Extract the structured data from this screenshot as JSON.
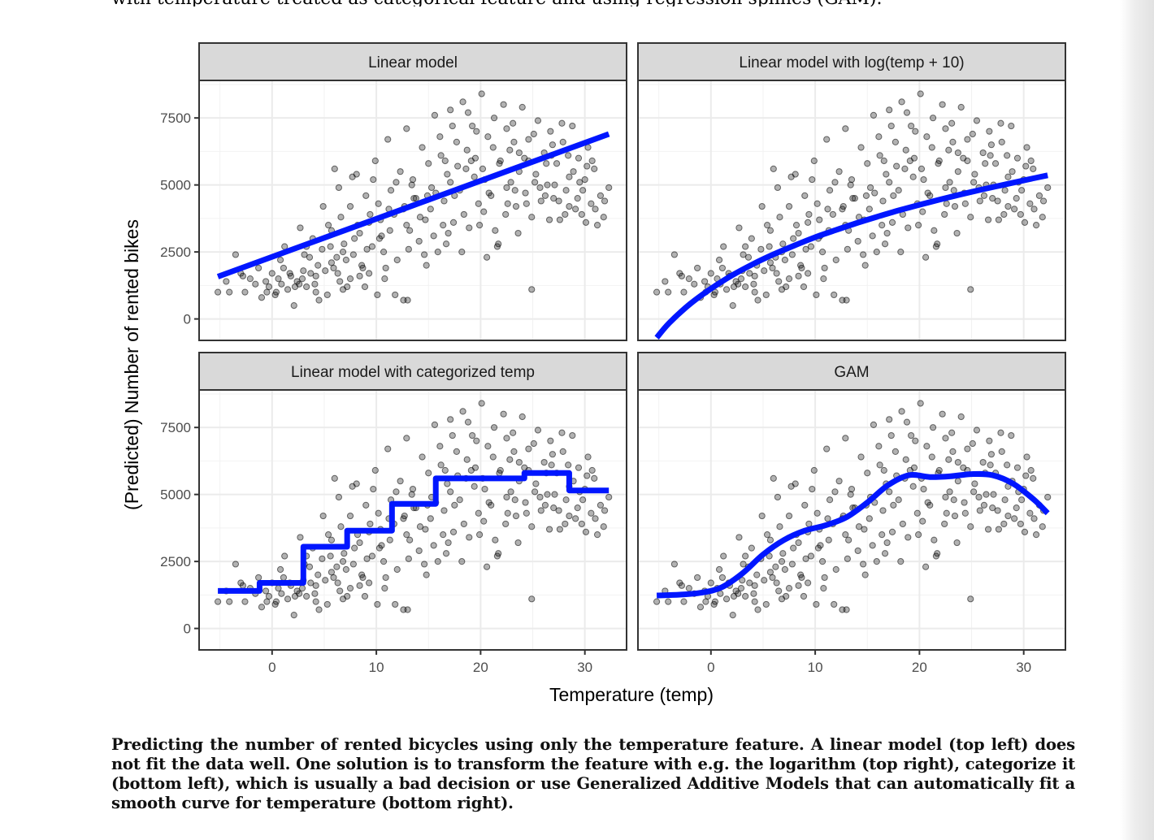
{
  "document": {
    "top_text": "with temperature treated as categorical feature and using regression splines (GAM).",
    "caption": "Predicting the number of rented bicycles using only the temperature feature. A linear model (top left) does not fit the data well. One solution is to transform the feature with e.g. the logarithm (top right), categorize it (bottom left), which is usually a bad decision or use Generalized Additive Models that can automatically fit a smooth curve for temperature (bottom right)."
  },
  "chart_data": {
    "type": "scatter",
    "xlabel": "Temperature (temp)",
    "ylabel": "(Predicted) Number of rented bikes",
    "xlim": [
      -7,
      34
    ],
    "ylim": [
      -800,
      8900
    ],
    "x_ticks": [
      0,
      10,
      20,
      30
    ],
    "y_ticks": [
      0,
      2500,
      5000,
      7500
    ],
    "grid": true,
    "colors": {
      "points": "#000000",
      "point_opacity": 0.3,
      "fit_line": "#0016ff",
      "strip_bg": "#d9d9d9",
      "panel_border": "#333333",
      "grid": "#ebebeb"
    },
    "panels": [
      {
        "title": "Linear model",
        "fit_type": "line",
        "fit": {
          "x": [
            -5.2,
            32.3
          ],
          "y": [
            1580,
            6900
          ]
        }
      },
      {
        "title": "Linear model with log(temp + 10)",
        "fit_type": "curve",
        "fit": {
          "x": [
            -5.2,
            -4,
            -2,
            0,
            2,
            4,
            6,
            8,
            10,
            12,
            14,
            16,
            18,
            20,
            22,
            24,
            26,
            28,
            30,
            32.3
          ],
          "y": [
            -700,
            -150,
            560,
            1130,
            1620,
            2040,
            2410,
            2740,
            3050,
            3320,
            3580,
            3820,
            4050,
            4260,
            4460,
            4650,
            4830,
            5000,
            5170,
            5360
          ]
        }
      },
      {
        "title": "Linear model with categorized temp",
        "fit_type": "step",
        "fit": {
          "x": [
            -5.2,
            -1.2,
            -1.2,
            3,
            3,
            7.2,
            7.2,
            11.5,
            11.5,
            15.7,
            15.7,
            20,
            20,
            24.2,
            24.2,
            28.5,
            28.5,
            32.3
          ],
          "y": [
            1400,
            1400,
            1700,
            1700,
            3050,
            3050,
            3650,
            3650,
            4650,
            4650,
            5600,
            5600,
            5600,
            5600,
            5800,
            5800,
            5150,
            5150
          ]
        }
      },
      {
        "title": "GAM",
        "fit_type": "curve",
        "fit": {
          "x": [
            -5.2,
            -3,
            -1,
            1,
            3,
            5,
            7,
            9,
            11,
            13,
            15,
            17,
            19,
            21,
            23,
            25,
            27,
            29,
            31,
            32.3
          ],
          "y": [
            1230,
            1260,
            1330,
            1530,
            2050,
            2760,
            3300,
            3650,
            3850,
            4150,
            4700,
            5350,
            5720,
            5650,
            5680,
            5760,
            5720,
            5400,
            4800,
            4300
          ]
        }
      }
    ],
    "points": [
      [
        -5.2,
        1000
      ],
      [
        -4.4,
        1400
      ],
      [
        -3.5,
        2400
      ],
      [
        -3,
        1700
      ],
      [
        -2.6,
        1000
      ],
      [
        -2.1,
        1500
      ],
      [
        -1.6,
        1300
      ],
      [
        -1.3,
        1900
      ],
      [
        -1,
        800
      ],
      [
        -0.6,
        1400
      ],
      [
        -0.3,
        1200
      ],
      [
        0,
        1700
      ],
      [
        0.3,
        900
      ],
      [
        0.6,
        1500
      ],
      [
        0.9,
        1300
      ],
      [
        1.2,
        2700
      ],
      [
        1.5,
        1100
      ],
      [
        1.8,
        1600
      ],
      [
        2.1,
        500
      ],
      [
        2.4,
        1400
      ],
      [
        2.7,
        3400
      ],
      [
        3,
        1800
      ],
      [
        3.3,
        1200
      ],
      [
        3.6,
        2300
      ],
      [
        3.9,
        3000
      ],
      [
        4.2,
        1600
      ],
      [
        4.5,
        700
      ],
      [
        4.8,
        2600
      ],
      [
        5.1,
        1800
      ],
      [
        5.4,
        3500
      ],
      [
        5.7,
        2100
      ],
      [
        6,
        5600
      ],
      [
        6.3,
        1700
      ],
      [
        6.6,
        3800
      ],
      [
        6.9,
        2800
      ],
      [
        7.2,
        1200
      ],
      [
        7.5,
        4200
      ],
      [
        7.8,
        2400
      ],
      [
        8.1,
        5400
      ],
      [
        8.4,
        3200
      ],
      [
        8.7,
        1900
      ],
      [
        9,
        4600
      ],
      [
        9.3,
        3600
      ],
      [
        9.6,
        2700
      ],
      [
        9.9,
        5900
      ],
      [
        10.2,
        4300
      ],
      [
        10.5,
        3100
      ],
      [
        10.8,
        1500
      ],
      [
        11.1,
        6700
      ],
      [
        11.4,
        4800
      ],
      [
        11.7,
        3900
      ],
      [
        12,
        2200
      ],
      [
        12.3,
        5500
      ],
      [
        12.6,
        4100
      ],
      [
        12.9,
        7100
      ],
      [
        13.2,
        3300
      ],
      [
        13.5,
        5200
      ],
      [
        13.8,
        4500
      ],
      [
        14.1,
        2900
      ],
      [
        14.4,
        6400
      ],
      [
        14.7,
        3700
      ],
      [
        15,
        5800
      ],
      [
        15.3,
        4900
      ],
      [
        15.6,
        7600
      ],
      [
        15.9,
        2500
      ],
      [
        16.2,
        6100
      ],
      [
        16.5,
        4400
      ],
      [
        16.8,
        5400
      ],
      [
        17.1,
        7800
      ],
      [
        17.4,
        3600
      ],
      [
        17.7,
        6600
      ],
      [
        18,
        4800
      ],
      [
        18.3,
        8100
      ],
      [
        18.6,
        5600
      ],
      [
        18.9,
        3400
      ],
      [
        19.2,
        7200
      ],
      [
        19.5,
        6000
      ],
      [
        19.8,
        4300
      ],
      [
        20.1,
        8400
      ],
      [
        20.4,
        5200
      ],
      [
        20.7,
        6800
      ],
      [
        21,
        4600
      ],
      [
        21.3,
        7500
      ],
      [
        21.6,
        2700
      ],
      [
        21.9,
        5900
      ],
      [
        22.2,
        8000
      ],
      [
        22.5,
        4900
      ],
      [
        22.8,
        6300
      ],
      [
        23.1,
        7300
      ],
      [
        23.4,
        4200
      ],
      [
        23.7,
        5500
      ],
      [
        24,
        7900
      ],
      [
        24.3,
        4700
      ],
      [
        24.6,
        6700
      ],
      [
        24.9,
        3800
      ],
      [
        25.2,
        5100
      ],
      [
        25.5,
        7400
      ],
      [
        25.8,
        4400
      ],
      [
        26.1,
        6200
      ],
      [
        26.4,
        5000
      ],
      [
        26.7,
        7000
      ],
      [
        27,
        4500
      ],
      [
        27.3,
        5800
      ],
      [
        27.6,
        3700
      ],
      [
        27.9,
        6600
      ],
      [
        28.2,
        4800
      ],
      [
        28.5,
        5300
      ],
      [
        28.8,
        7200
      ],
      [
        29.1,
        4100
      ],
      [
        29.4,
        6000
      ],
      [
        29.7,
        3900
      ],
      [
        30,
        5200
      ],
      [
        30.3,
        6400
      ],
      [
        30.6,
        4300
      ],
      [
        30.9,
        5600
      ],
      [
        31.2,
        3500
      ],
      [
        31.5,
        4600
      ],
      [
        31.8,
        3800
      ],
      [
        32.3,
        4900
      ],
      [
        24.9,
        1100
      ],
      [
        28.5,
        4200
      ],
      [
        13,
        700
      ],
      [
        -0.5,
        1000
      ],
      [
        -2.8,
        1600
      ],
      [
        -4.1,
        1000
      ],
      [
        2.6,
        1300
      ],
      [
        4.2,
        1000
      ],
      [
        6.8,
        1100
      ],
      [
        8.9,
        1200
      ],
      [
        10.1,
        900
      ],
      [
        11.8,
        900
      ],
      [
        12.6,
        700
      ],
      [
        8.6,
        2000
      ],
      [
        10.3,
        3000
      ],
      [
        5.7,
        3300
      ],
      [
        15.7,
        4700
      ],
      [
        17.8,
        5700
      ],
      [
        19.1,
        5900
      ],
      [
        20.3,
        4000
      ],
      [
        21.4,
        3300
      ],
      [
        22.9,
        5100
      ],
      [
        26.6,
        3700
      ],
      [
        29.8,
        4800
      ],
      [
        7.5,
        1500
      ],
      [
        9.3,
        1700
      ],
      [
        5.3,
        900
      ],
      [
        1.7,
        1700
      ],
      [
        0.8,
        2200
      ],
      [
        3.3,
        2700
      ],
      [
        6.2,
        2300
      ],
      [
        18.2,
        2500
      ],
      [
        16.9,
        3200
      ],
      [
        14.8,
        2000
      ],
      [
        20.6,
        2300
      ],
      [
        21.7,
        2800
      ],
      [
        23.6,
        3200
      ],
      [
        13.4,
        5000
      ],
      [
        11.9,
        5100
      ],
      [
        9.7,
        5200
      ],
      [
        7.7,
        5300
      ],
      [
        6.4,
        4900
      ],
      [
        4.9,
        4200
      ],
      [
        14.2,
        3800
      ],
      [
        16.4,
        3500
      ],
      [
        25.1,
        6900
      ],
      [
        27.8,
        7300
      ],
      [
        26.9,
        6500
      ],
      [
        23.2,
        6600
      ],
      [
        19.6,
        7000
      ],
      [
        18.8,
        7700
      ],
      [
        17.3,
        7200
      ],
      [
        16.1,
        6800
      ],
      [
        22.5,
        7100
      ],
      [
        24.6,
        5900
      ],
      [
        26.2,
        4600
      ],
      [
        28.9,
        5500
      ],
      [
        30.7,
        5900
      ],
      [
        31.9,
        4400
      ],
      [
        2.2,
        1200
      ],
      [
        0.4,
        1000
      ],
      [
        3.7,
        1700
      ],
      [
        5.6,
        2700
      ],
      [
        7.9,
        3000
      ],
      [
        10.7,
        2500
      ],
      [
        12.9,
        3500
      ],
      [
        15.2,
        4100
      ],
      [
        17.5,
        4600
      ],
      [
        20.2,
        5600
      ],
      [
        22.6,
        4300
      ],
      [
        25.3,
        5400
      ],
      [
        27.1,
        5000
      ],
      [
        29.3,
        4500
      ],
      [
        4.4,
        2000
      ],
      [
        6.8,
        2500
      ],
      [
        9.4,
        3900
      ],
      [
        11.2,
        4100
      ],
      [
        13.6,
        4500
      ],
      [
        16.6,
        5900
      ],
      [
        18.7,
        6300
      ],
      [
        21.2,
        6400
      ],
      [
        23.7,
        6200
      ],
      [
        26.3,
        5800
      ],
      [
        28.4,
        6100
      ],
      [
        30.2,
        5700
      ],
      [
        1.1,
        1900
      ],
      [
        3.1,
        2400
      ],
      [
        8.2,
        3500
      ],
      [
        10.4,
        3700
      ],
      [
        12.7,
        4200
      ],
      [
        14.9,
        4600
      ],
      [
        17.1,
        5100
      ],
      [
        19.4,
        5300
      ],
      [
        21.8,
        5800
      ],
      [
        24.2,
        6000
      ],
      [
        26.8,
        6100
      ],
      [
        29.5,
        5100
      ],
      [
        4.1,
        1300
      ],
      [
        5.9,
        1900
      ],
      [
        7.1,
        2200
      ],
      [
        9.1,
        2600
      ],
      [
        11.3,
        3300
      ],
      [
        13.1,
        2600
      ],
      [
        15.5,
        3100
      ],
      [
        18.4,
        3900
      ],
      [
        20.8,
        4700
      ],
      [
        23.3,
        4800
      ],
      [
        25.7,
        4900
      ],
      [
        28.1,
        3900
      ],
      [
        31,
        4100
      ],
      [
        2.9,
        1500
      ],
      [
        6.5,
        1400
      ],
      [
        8.4,
        1600
      ],
      [
        10.9,
        1900
      ],
      [
        14.6,
        2400
      ],
      [
        16.7,
        2800
      ],
      [
        19.9,
        3500
      ],
      [
        22.4,
        3900
      ],
      [
        24.4,
        4300
      ],
      [
        27.5,
        4400
      ],
      [
        30.1,
        3600
      ]
    ]
  }
}
